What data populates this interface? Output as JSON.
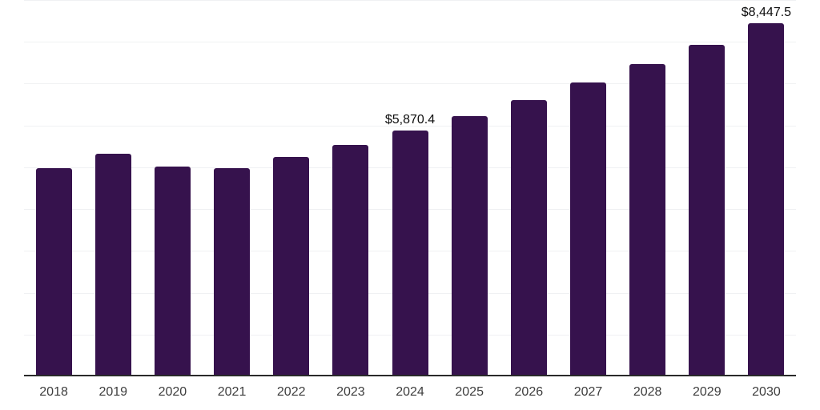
{
  "chart_data": {
    "type": "bar",
    "title": "",
    "xlabel": "",
    "ylabel": "",
    "categories": [
      "2018",
      "2019",
      "2020",
      "2021",
      "2022",
      "2023",
      "2024",
      "2025",
      "2026",
      "2027",
      "2028",
      "2029",
      "2030"
    ],
    "values": [
      4975,
      5330,
      5010,
      4975,
      5245,
      5530,
      5870.4,
      6225,
      6615,
      7020,
      7460,
      7930,
      8447.5
    ],
    "point_labels": [
      "",
      "",
      "",
      "",
      "",
      "",
      "$5,870.4",
      "",
      "",
      "",
      "",
      "",
      "$8,447.5"
    ],
    "ylim": [
      0,
      9000
    ],
    "gridline_step": 1000,
    "grid": "horizontal-only",
    "legend": "none",
    "y_axis_labels_visible": false,
    "colors": {
      "bar": "#36124d",
      "axis_line": "#2a2a2a",
      "gridline": "#f0f1f3",
      "tick_label": "#3d3d3d",
      "data_label": "#0d0d0d",
      "background": "#ffffff"
    }
  }
}
